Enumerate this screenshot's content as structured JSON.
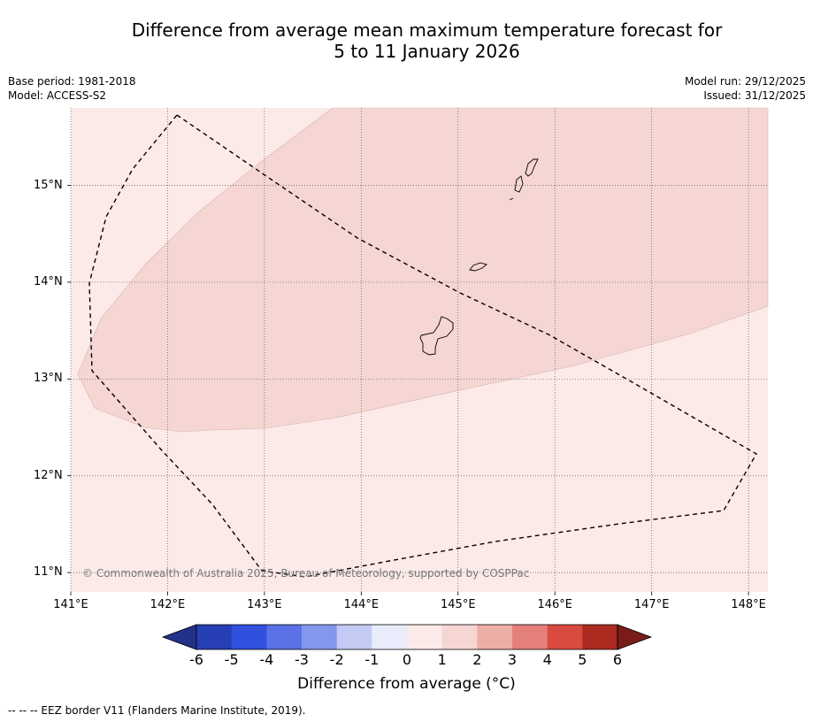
{
  "title": {
    "line1": "Difference from average mean maximum temperature forecast for",
    "line2": "5 to 11 January 2026"
  },
  "meta_left": {
    "base_period": "Base period: 1981-2018",
    "model": "Model: ACCESS-S2"
  },
  "meta_right": {
    "model_run": "Model run: 29/12/2025",
    "issued": "Issued: 31/12/2025"
  },
  "map": {
    "lon_labels": [
      "141°E",
      "142°E",
      "143°E",
      "144°E",
      "145°E",
      "146°E",
      "147°E",
      "148°E"
    ],
    "lat_labels": [
      "15°N",
      "14°N",
      "13°N",
      "12°N",
      "11°N"
    ],
    "lon_range": [
      141.0,
      148.2
    ],
    "lat_range": [
      10.8,
      15.8
    ],
    "fill_colors": {
      "band_0_to_1": "#fbeae8",
      "band_1_to_2": "#f5d6d3"
    },
    "copyright": "© Commonwealth of Australia 2025, Bureau of Meteorology, supported by COSPPac"
  },
  "colorbar": {
    "ticks": [
      "-6",
      "-5",
      "-4",
      "-3",
      "-2",
      "-1",
      "0",
      "1",
      "2",
      "3",
      "4",
      "5",
      "6"
    ],
    "colors": [
      "#22318a",
      "#263fb5",
      "#3050dd",
      "#5a72e6",
      "#8597ec",
      "#c3cbf4",
      "#e8ecfb",
      "#fbeae8",
      "#f5d6d3",
      "#eeaea8",
      "#e4807a",
      "#d94a3f",
      "#ad2a21",
      "#7a1c18"
    ],
    "label": "Difference from average (°C)"
  },
  "footnote": "--  --  -- EEZ border V11 (Flanders Marine Institute, 2019)."
}
